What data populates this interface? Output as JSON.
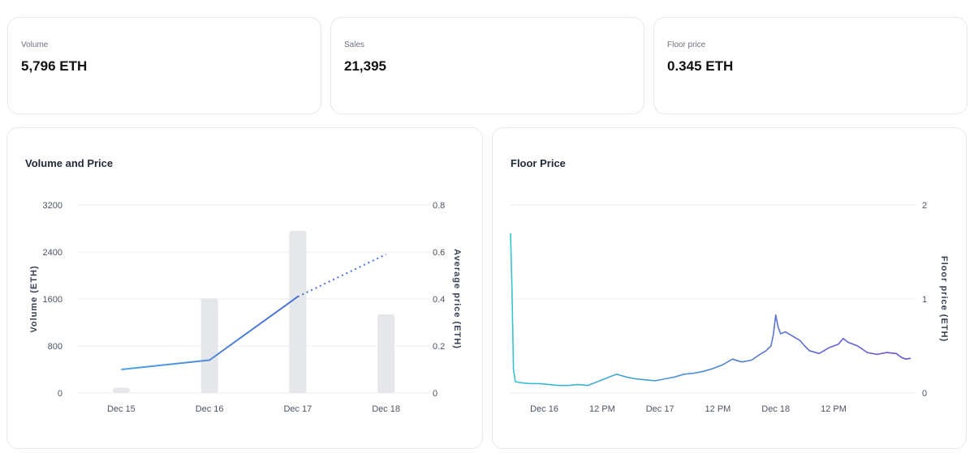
{
  "stats": [
    {
      "label": "Volume",
      "value": "5,796 ETH"
    },
    {
      "label": "Sales",
      "value": "21,395"
    },
    {
      "label": "Floor price",
      "value": "0.345 ETH"
    }
  ],
  "chart_data": [
    {
      "type": "bar",
      "title": "Volume and Price",
      "categories": [
        "Dec 15",
        "Dec 16",
        "Dec 17",
        "Dec 18"
      ],
      "ylabel": "Volume (ETH)",
      "y2label": "Average price (ETH)",
      "ylim": [
        0,
        3200
      ],
      "y2lim": [
        0,
        0.8
      ],
      "yticks": [
        "0",
        "800",
        "1600",
        "2400",
        "3200"
      ],
      "y2ticks": [
        "0",
        "0.2",
        "0.4",
        "0.6",
        "0.8"
      ],
      "grid": true,
      "series": [
        {
          "type": "bar",
          "axis": "left",
          "values": [
            90,
            1610,
            2760,
            1340
          ]
        },
        {
          "type": "line",
          "axis": "right",
          "values": [
            0.1,
            0.14,
            0.41,
            0.59
          ],
          "dashed_from": 2
        }
      ],
      "colors": {
        "bar": "#e5e7eb",
        "line_start": "#4fa3e0",
        "line_end": "#4b6fd6"
      }
    },
    {
      "type": "line",
      "title": "Floor Price",
      "ylabel": "Floor price (ETH)",
      "ylim": [
        0,
        2
      ],
      "yticks": [
        "0",
        "1",
        "2"
      ],
      "xticks": [
        "Dec 16",
        "12 PM",
        "Dec 17",
        "12 PM",
        "Dec 18",
        "12 PM"
      ],
      "xrange_hours": [
        0,
        84
      ],
      "xtick_hours": [
        7,
        19,
        31,
        43,
        55,
        67
      ],
      "grid": true,
      "series": [
        {
          "x_hours": [
            0,
            0.3,
            0.6,
            1,
            2,
            4,
            6,
            8,
            10,
            12,
            14,
            16,
            18,
            20,
            22,
            24,
            26,
            28,
            30,
            32,
            34,
            36,
            38,
            40,
            42,
            44,
            46,
            48,
            50,
            52,
            53,
            54,
            54.5,
            55,
            55.5,
            56,
            57,
            58,
            59,
            60,
            61,
            62,
            64,
            66,
            68,
            69,
            70,
            72,
            74,
            76,
            78,
            80,
            81,
            82,
            83
          ],
          "values": [
            1.7,
            1.1,
            0.25,
            0.12,
            0.11,
            0.1,
            0.1,
            0.09,
            0.08,
            0.08,
            0.09,
            0.08,
            0.12,
            0.16,
            0.2,
            0.17,
            0.15,
            0.14,
            0.13,
            0.15,
            0.17,
            0.2,
            0.21,
            0.23,
            0.26,
            0.3,
            0.36,
            0.33,
            0.35,
            0.42,
            0.45,
            0.5,
            0.62,
            0.83,
            0.7,
            0.63,
            0.65,
            0.62,
            0.59,
            0.56,
            0.5,
            0.45,
            0.42,
            0.48,
            0.52,
            0.58,
            0.54,
            0.5,
            0.43,
            0.41,
            0.43,
            0.42,
            0.38,
            0.36,
            0.37
          ]
        }
      ],
      "colors": {
        "line_start": "#36c3d6",
        "line_end": "#6c4fd0"
      }
    }
  ]
}
